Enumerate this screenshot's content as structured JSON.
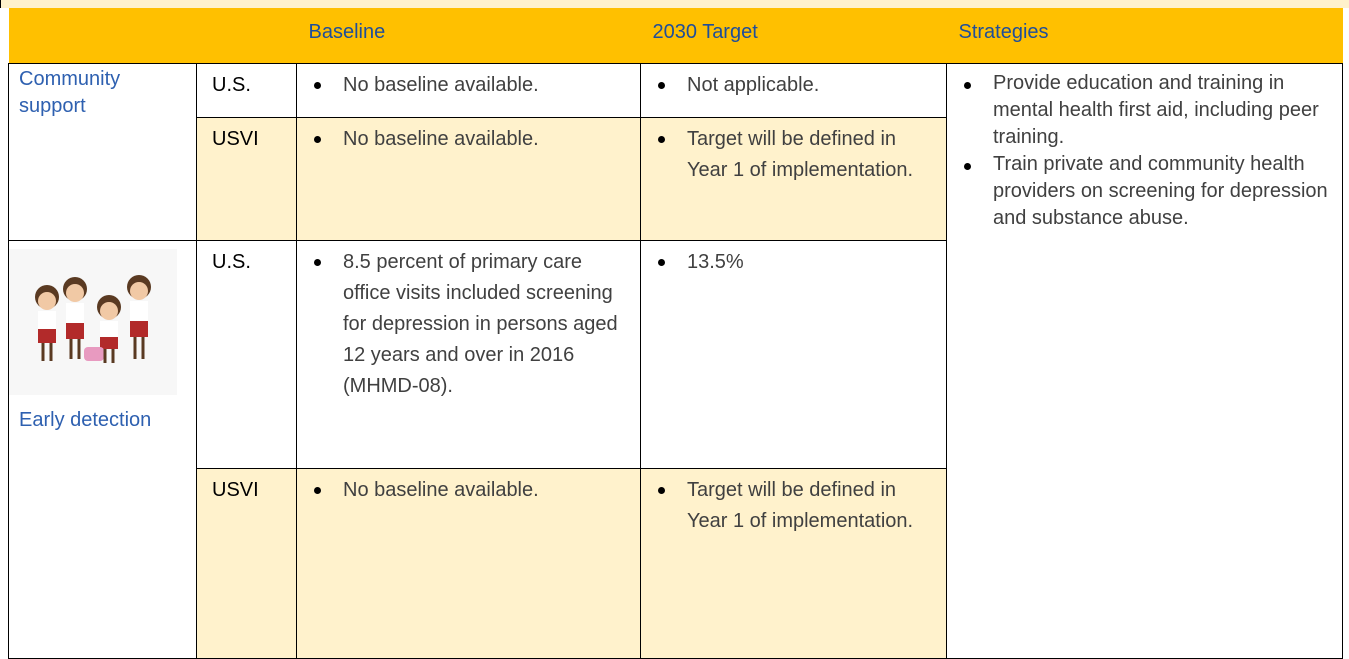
{
  "table": {
    "headers": [
      "Baseline",
      "2030 Target",
      "Strategies"
    ],
    "groups": [
      {
        "label": "Community support",
        "rows": [
          {
            "region": "U.S.",
            "baseline": [
              "No baseline available."
            ],
            "target": [
              "Not applicable."
            ]
          },
          {
            "region": "USVI",
            "baseline": [
              "No baseline available."
            ],
            "target": [
              "Target will be defined in Year 1 of implementation."
            ]
          }
        ]
      },
      {
        "label": "Early detection",
        "rows": [
          {
            "region": "U.S.",
            "baseline": [
              "8.5 percent of primary care office visits included screening for depression in persons aged 12 years and over in 2016 (MHMD-08)."
            ],
            "target": [
              "13.5%"
            ]
          },
          {
            "region": "USVI",
            "baseline": [
              "No baseline available."
            ],
            "target": [
              "Target will be defined in Year 1 of implementation."
            ]
          }
        ]
      }
    ],
    "strategies": [
      "Provide education and training in mental health first aid, including peer training.",
      "Train private and community health providers on screening for depression and substance abuse."
    ]
  }
}
